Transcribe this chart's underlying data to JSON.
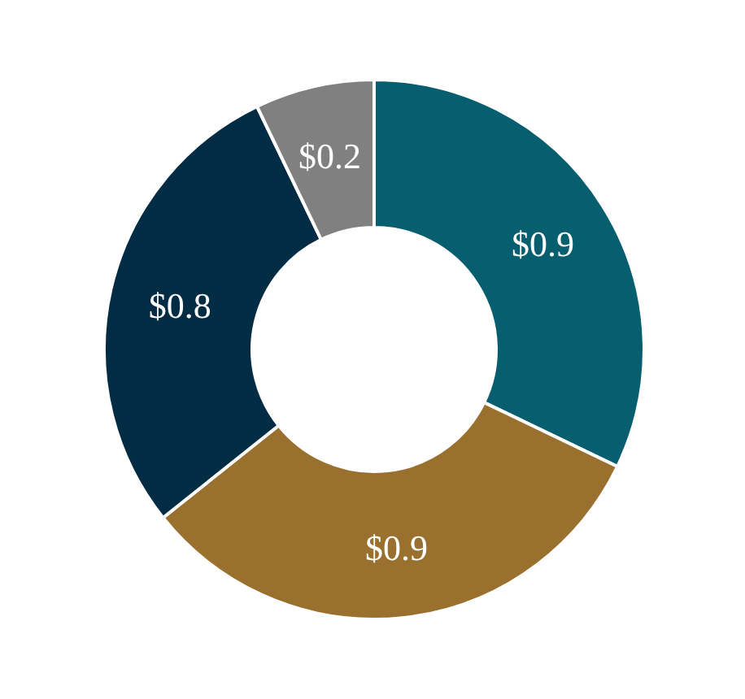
{
  "chart_data": {
    "type": "donut",
    "categories": [
      null,
      null,
      null,
      null
    ],
    "values": [
      0.9,
      0.9,
      0.8,
      0.2
    ],
    "colors": [
      "#065e6e",
      "#9a702e",
      "#022b44",
      "#808080"
    ],
    "value_labels": [
      "$0.9",
      "$0.9",
      "$0.8",
      "$0.2"
    ]
  }
}
